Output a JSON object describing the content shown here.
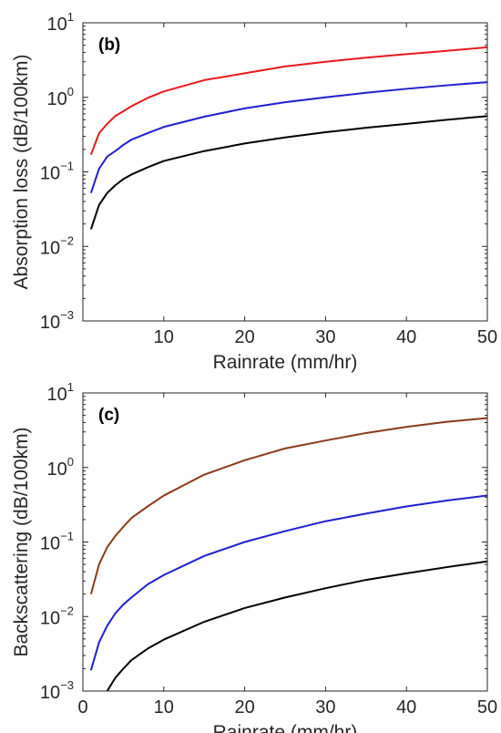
{
  "chart_data": [
    {
      "type": "line",
      "panel_label": "(b)",
      "xlabel": "Rainrate (mm/hr)",
      "ylabel": "Absorption loss (dB/100km)",
      "xlim": [
        0,
        50
      ],
      "ylim": [
        0.001,
        10
      ],
      "yscale": "log",
      "x_ticks": [
        10,
        20,
        30,
        40,
        50
      ],
      "y_tick_exponents": [
        -3,
        -2,
        -1,
        0,
        1
      ],
      "grid": false,
      "legend": "none",
      "series": [
        {
          "color": "#e8191c",
          "x": [
            1,
            2,
            3,
            4,
            5,
            6,
            8,
            10,
            15,
            20,
            25,
            30,
            35,
            40,
            45,
            50
          ],
          "y": [
            0.17,
            0.33,
            0.44,
            0.56,
            0.65,
            0.76,
            0.98,
            1.2,
            1.7,
            2.1,
            2.6,
            3.0,
            3.4,
            3.8,
            4.2,
            4.7
          ]
        },
        {
          "color": "#1f1fcf",
          "x": [
            1,
            2,
            3,
            4,
            5,
            6,
            8,
            10,
            15,
            20,
            25,
            30,
            35,
            40,
            45,
            50
          ],
          "y": [
            0.052,
            0.11,
            0.16,
            0.19,
            0.23,
            0.27,
            0.33,
            0.4,
            0.55,
            0.71,
            0.86,
            1.0,
            1.15,
            1.3,
            1.45,
            1.6
          ]
        },
        {
          "color": "#000000",
          "x": [
            1,
            2,
            3,
            4,
            5,
            6,
            8,
            10,
            15,
            20,
            25,
            30,
            35,
            40,
            45,
            50
          ],
          "y": [
            0.017,
            0.036,
            0.052,
            0.066,
            0.08,
            0.092,
            0.115,
            0.14,
            0.19,
            0.24,
            0.29,
            0.34,
            0.39,
            0.44,
            0.5,
            0.56
          ]
        }
      ]
    },
    {
      "type": "line",
      "panel_label": "(c)",
      "xlabel": "Rainrate (mm/hr)",
      "ylabel": "Backscattering (dB/100km)",
      "xlim": [
        0,
        50
      ],
      "ylim": [
        0.001,
        10
      ],
      "yscale": "log",
      "x_ticks": [
        0,
        10,
        20,
        30,
        40,
        50
      ],
      "y_tick_exponents": [
        -3,
        -2,
        -1,
        0,
        1
      ],
      "grid": false,
      "legend": "none",
      "series": [
        {
          "color": "#8b3a1a",
          "x": [
            1,
            2,
            3,
            4,
            5,
            6,
            8,
            10,
            15,
            20,
            25,
            30,
            35,
            40,
            45,
            50
          ],
          "y": [
            0.02,
            0.05,
            0.085,
            0.12,
            0.16,
            0.21,
            0.3,
            0.42,
            0.8,
            1.25,
            1.8,
            2.3,
            2.9,
            3.5,
            4.1,
            4.6
          ]
        },
        {
          "color": "#1f1fcf",
          "x": [
            1,
            2,
            3,
            4,
            5,
            6,
            8,
            10,
            15,
            20,
            25,
            30,
            35,
            40,
            45,
            50
          ],
          "y": [
            0.0019,
            0.0045,
            0.0075,
            0.011,
            0.0145,
            0.018,
            0.027,
            0.036,
            0.065,
            0.1,
            0.14,
            0.19,
            0.24,
            0.3,
            0.36,
            0.42
          ]
        },
        {
          "color": "#000000",
          "x": [
            3,
            4,
            5,
            6,
            8,
            10,
            15,
            20,
            25,
            30,
            35,
            40,
            45,
            50
          ],
          "y": [
            0.001,
            0.0015,
            0.002,
            0.0026,
            0.0037,
            0.0049,
            0.0085,
            0.013,
            0.018,
            0.024,
            0.031,
            0.038,
            0.046,
            0.055
          ]
        }
      ]
    }
  ]
}
